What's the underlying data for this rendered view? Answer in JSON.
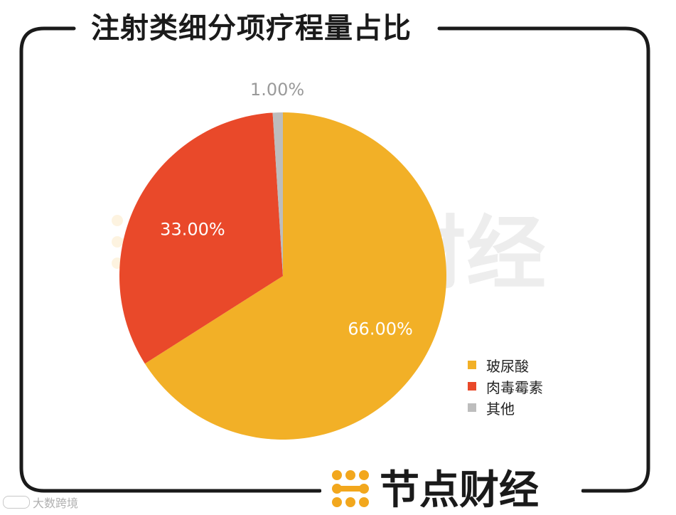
{
  "title": "注射类细分项疗程量占比",
  "brand": {
    "name": "节点财经",
    "color": "#f2a71d",
    "text_color": "#1a1a1a"
  },
  "footer_watermark": "大数跨境",
  "chart_data": {
    "type": "pie",
    "title": "注射类细分项疗程量占比",
    "slices": [
      {
        "label": "玻尿酸",
        "value": 66.0,
        "display": "66.00%",
        "color": "#f2b027"
      },
      {
        "label": "肉毒霉素",
        "value": 33.0,
        "display": "33.00%",
        "color": "#e9492a"
      },
      {
        "label": "其他",
        "value": 1.0,
        "display": "1.00%",
        "color": "#bdbdbd"
      }
    ],
    "start": "top",
    "direction": "clockwise",
    "legend_position": "bottom-right"
  }
}
